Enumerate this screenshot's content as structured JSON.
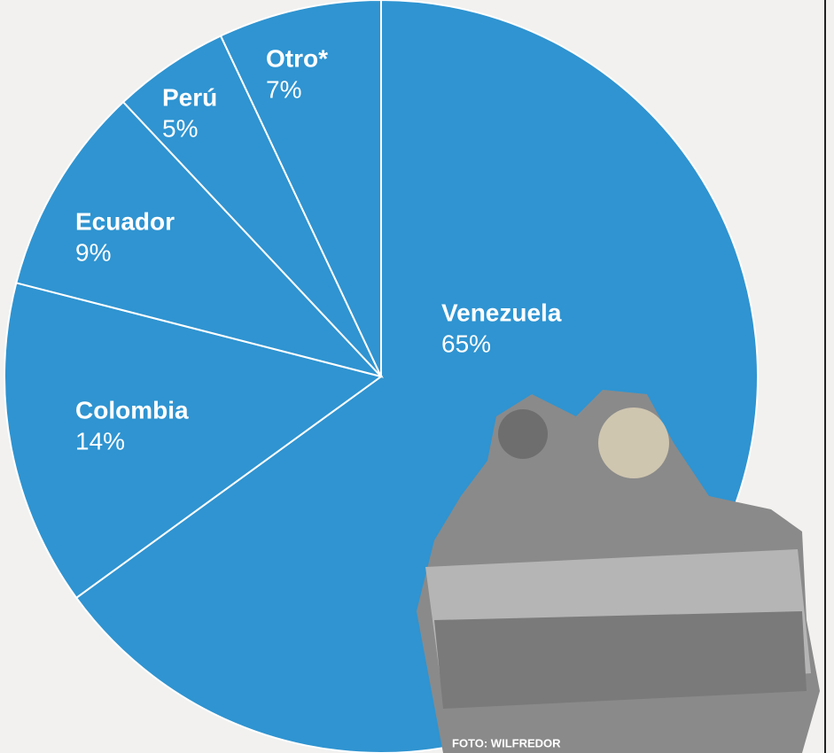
{
  "chart_data": {
    "type": "pie",
    "categories": [
      "Venezuela",
      "Colombia",
      "Ecuador",
      "Perú",
      "Otro*"
    ],
    "values": [
      65,
      14,
      9,
      5,
      7
    ],
    "value_labels": [
      "65%",
      "14%",
      "9%",
      "5%",
      "7%"
    ],
    "color": "#2f94d1",
    "annotation": "FOTO: WILFREDOR"
  }
}
